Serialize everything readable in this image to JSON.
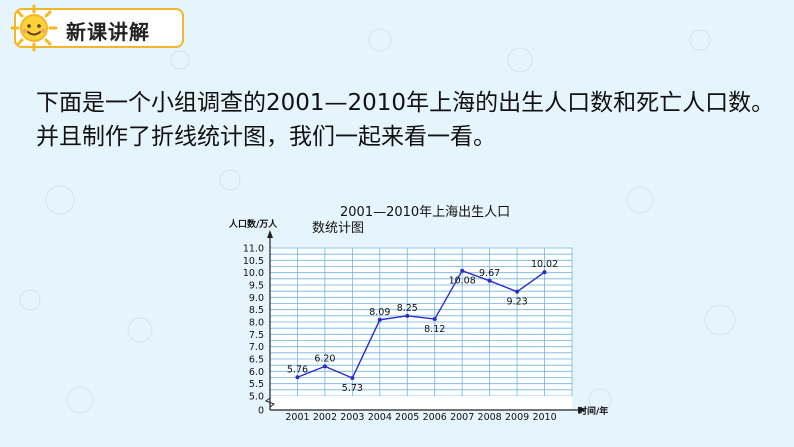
{
  "header": {
    "title": "新课讲解"
  },
  "intro": {
    "line1": "下面是一个小组调查的2001—2010年上海的出生人口数和死亡人口数。",
    "line2": "并且制作了折线统计图，我们一起来看一看。"
  },
  "colors": {
    "accent": "#f3b52c",
    "line": "#2b2bcc",
    "grid": "#6fb4e6",
    "background": "#e6f4fb"
  },
  "chart_data": {
    "type": "line",
    "title_line1": "2001—2010年上海出生人口",
    "title_line2": "数统计图",
    "ylabel": "人口数/万人",
    "xlabel": "时间/年",
    "categories": [
      "2001",
      "2002",
      "2003",
      "2004",
      "2005",
      "2006",
      "2007",
      "2008",
      "2009",
      "2010"
    ],
    "values": [
      5.76,
      6.2,
      5.73,
      8.09,
      8.25,
      8.12,
      10.08,
      9.67,
      9.23,
      10.02
    ],
    "value_labels": [
      "5.76",
      "6.20",
      "5.73",
      "8.09",
      "8.25",
      "8.12",
      "10.08",
      "9.67",
      "9.23",
      "10.02"
    ],
    "label_positions": [
      "above",
      "above",
      "below",
      "above",
      "above",
      "below",
      "below",
      "above",
      "below",
      "above"
    ],
    "yticks": [
      "11.0",
      "10.5",
      "10.0",
      "9.5",
      "9.0",
      "8.5",
      "8.0",
      "7.5",
      "7.0",
      "6.5",
      "6.0",
      "5.5",
      "5.0"
    ],
    "y_zero_label": "0",
    "ylim": [
      5.0,
      11.0
    ],
    "axis_break": true,
    "grid": true
  }
}
